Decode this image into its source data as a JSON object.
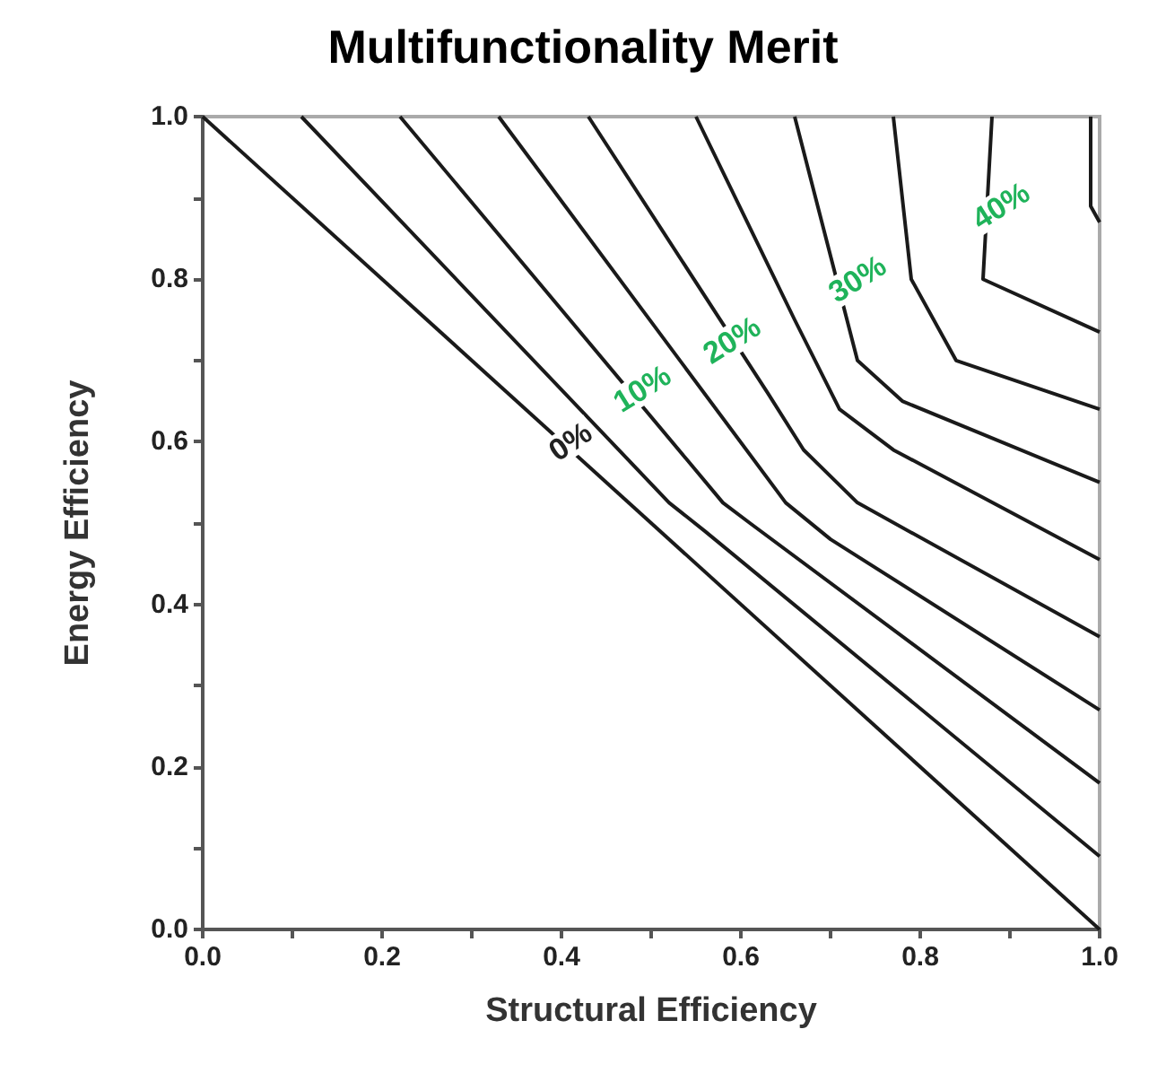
{
  "chart_data": {
    "type": "line",
    "title": "Multifunctionality Merit",
    "xlabel": "Structural Efficiency",
    "ylabel": "Energy Efficiency",
    "xlim": [
      0,
      1
    ],
    "ylim": [
      0,
      1
    ],
    "xticks": [
      {
        "value": 0,
        "label": "0.0"
      },
      {
        "value": 0.1,
        "label": null
      },
      {
        "value": 0.2,
        "label": "0.2"
      },
      {
        "value": 0.3,
        "label": null
      },
      {
        "value": 0.4,
        "label": "0.4"
      },
      {
        "value": 0.5,
        "label": null
      },
      {
        "value": 0.6,
        "label": "0.6"
      },
      {
        "value": 0.7,
        "label": null
      },
      {
        "value": 0.8,
        "label": "0.8"
      },
      {
        "value": 0.9,
        "label": null
      },
      {
        "value": 1,
        "label": "1.0"
      }
    ],
    "yticks": [
      {
        "value": 0,
        "label": "0.0"
      },
      {
        "value": 0.1,
        "label": null
      },
      {
        "value": 0.2,
        "label": "0.2"
      },
      {
        "value": 0.3,
        "label": null
      },
      {
        "value": 0.4,
        "label": "0.4"
      },
      {
        "value": 0.5,
        "label": null
      },
      {
        "value": 0.6,
        "label": "0.6"
      },
      {
        "value": 0.7,
        "label": null
      },
      {
        "value": 0.8,
        "label": "0.8"
      },
      {
        "value": 0.9,
        "label": null
      },
      {
        "value": 1,
        "label": "1.0"
      }
    ],
    "marker": "none",
    "line_style": "solid",
    "series": [
      {
        "color": "#1a1a1a",
        "x": [
          0,
          1
        ],
        "values": [
          1,
          0
        ]
      },
      {
        "color": "#1a1a1a",
        "x": [
          0.11,
          0.52,
          0.56,
          1
        ],
        "values": [
          1,
          0.525,
          0.49,
          0.09
        ]
      },
      {
        "color": "#1a1a1a",
        "x": [
          0.22,
          0.58,
          0.61,
          1
        ],
        "values": [
          1,
          0.525,
          0.5,
          0.18
        ]
      },
      {
        "color": "#1a1a1a",
        "x": [
          0.33,
          0.65,
          0.7,
          1
        ],
        "values": [
          1,
          0.525,
          0.48,
          0.27
        ]
      },
      {
        "color": "#1a1a1a",
        "x": [
          0.43,
          0.63,
          0.67,
          0.73,
          1
        ],
        "values": [
          1,
          0.66,
          0.59,
          0.525,
          0.36
        ]
      },
      {
        "color": "#1a1a1a",
        "x": [
          0.55,
          0.66,
          0.71,
          0.77,
          1
        ],
        "values": [
          1,
          0.75,
          0.64,
          0.59,
          0.455
        ]
      },
      {
        "color": "#1a1a1a",
        "x": [
          0.66,
          0.73,
          0.78,
          1
        ],
        "values": [
          1,
          0.7,
          0.65,
          0.55
        ]
      },
      {
        "color": "#1a1a1a",
        "x": [
          0.77,
          0.79,
          0.84,
          1
        ],
        "values": [
          1,
          0.8,
          0.7,
          0.64
        ]
      },
      {
        "color": "#1a1a1a",
        "x": [
          0.88,
          0.87,
          1
        ],
        "values": [
          1,
          0.8,
          0.735
        ]
      },
      {
        "color": "#1a1a1a",
        "x": [
          0.99,
          0.99,
          1
        ],
        "values": [
          1,
          0.89,
          0.87
        ]
      }
    ],
    "annotations": [
      {
        "text": "0%",
        "x": 0.41,
        "y": 0.6
      },
      {
        "text": "10%",
        "x": 0.49,
        "y": 0.665
      },
      {
        "text": "20%",
        "x": 0.59,
        "y": 0.725
      },
      {
        "text": "30%",
        "x": 0.73,
        "y": 0.8
      },
      {
        "text": "40%",
        "x": 0.89,
        "y": 0.89
      }
    ]
  }
}
